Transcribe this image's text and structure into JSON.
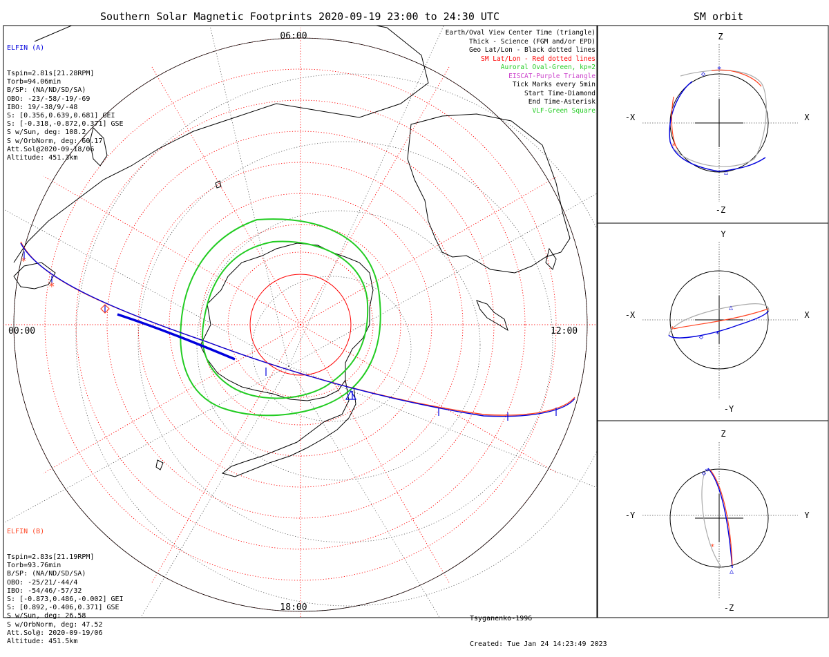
{
  "title": "Southern Solar Magnetic Footprints 2020-09-19 23:00 to 24:30 UTC",
  "orbit_title": "SM orbit",
  "clock_labels": {
    "top": "06:00",
    "left": "00:00",
    "right": "12:00",
    "bottom": "18:00"
  },
  "elfin_a": {
    "name": "ELFIN (A)",
    "lines": [
      "Tspin=2.81s[21.28RPM]",
      "Torb=94.06min",
      "B/SP: (NA/ND/SD/SA)",
      "OBO: -23/-58/-19/-69",
      "IBO: 19/-38/9/-48",
      "S: [0.356,0.639,0.681] GEI",
      "S: [-0.318,-0.872,0.371] GSE",
      "S w/Sun, deg: 108.2",
      "S w/OrbNorm, deg: 60.17",
      "Att.Sol@2020-09-18/06",
      "Altitude: 451.3km"
    ]
  },
  "elfin_b": {
    "name": "ELFIN (B)",
    "lines": [
      "Tspin=2.83s[21.19RPM]",
      "Torb=93.76min",
      "B/SP: (NA/ND/SD/SA)",
      "OBO: -25/21/-44/4",
      "IBO: -54/46/-57/32",
      "S: [-0.873,0.486,-0.002] GEI",
      "S: [0.892,-0.406,0.371] GSE",
      "S w/Sun, deg: 26.58",
      "S w/OrbNorm, deg: 47.52",
      "Att.Sol@: 2020-09-19/06",
      "Altitude: 451.5km"
    ]
  },
  "legend": [
    {
      "text": "Earth/Oval View Center Time (triangle)",
      "color": "#000000"
    },
    {
      "text": "Thick - Science (FGM and/or EPD)",
      "color": "#000000"
    },
    {
      "text": "Geo Lat/Lon - Black dotted lines",
      "color": "#000000"
    },
    {
      "text": "SM Lat/Lon - Red dotted lines",
      "color": "#ff0000"
    },
    {
      "text": "Auroral Oval-Green, kp=2",
      "color": "#22cc22"
    },
    {
      "text": "EISCAT-Purple Triangle",
      "color": "#cc44cc"
    },
    {
      "text": "Tick Marks every 5min",
      "color": "#000000"
    },
    {
      "text": "Start Time-Diamond",
      "color": "#000000"
    },
    {
      "text": "End Time-Asterisk",
      "color": "#000000"
    },
    {
      "text": "VLF-Green Square",
      "color": "#22cc22"
    }
  ],
  "footer": {
    "model": "Tsyganenko-1996",
    "created": "Created: Tue Jan 24 14:23:49 2023"
  },
  "panels": [
    {
      "top": "Z",
      "bottom": "-Z",
      "left": "-X",
      "right": "X"
    },
    {
      "top": "Y",
      "bottom": "-Y",
      "left": "-X",
      "right": "X"
    },
    {
      "top": "Z",
      "bottom": "-Z",
      "left": "-Y",
      "right": "Y"
    }
  ],
  "colors": {
    "elfin_a": "#0000dd",
    "elfin_b": "#ff4422",
    "sm_grid": "#ff0000",
    "geo_grid": "#000000",
    "oval": "#22cc22",
    "orbit_other": "#aaaaaa"
  }
}
